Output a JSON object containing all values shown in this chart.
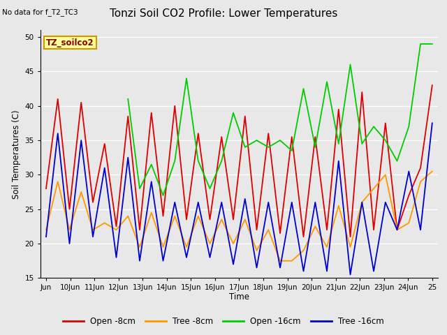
{
  "title": "Tonzi Soil CO2 Profile: Lower Temperatures",
  "no_data_text": "No data for f_T2_TC3",
  "ylabel": "Soil Temperatures (C)",
  "xlabel": "Time",
  "ylim": [
    15,
    51
  ],
  "yticks": [
    15,
    20,
    25,
    30,
    35,
    40,
    45,
    50
  ],
  "background_color": "#e8e8e8",
  "plot_bg_color": "#e8e8e8",
  "legend_label": "TZ_soilco2",
  "legend_box_color": "#ffff99",
  "legend_box_border": "#cc9900",
  "series_colors": {
    "open_8cm": "#dd0000",
    "tree_8cm": "#ff9900",
    "open_16cm": "#00cc00",
    "tree_16cm": "#0000cc"
  },
  "xtick_labels": [
    "Jun",
    "10Jun",
    "11Jun",
    "12Jun",
    "13Jun",
    "14Jun",
    "15Jun",
    "16Jun",
    "17Jun",
    "18Jun",
    "19Jun",
    "20Jun",
    "21Jun",
    "22Jun",
    "23Jun",
    "24Jun",
    "25"
  ],
  "open_8cm": [
    28,
    41,
    25,
    40.5,
    26,
    34.5,
    22.5,
    38.5,
    22,
    39,
    24,
    40,
    23.5,
    36,
    23.5,
    35.5,
    23.5,
    38.5,
    22,
    36,
    21.5,
    35.5,
    21,
    35.5,
    22,
    39.5,
    21,
    42,
    22,
    37.5,
    22,
    27,
    31,
    43
  ],
  "tree_8cm": [
    22,
    29,
    22,
    27.5,
    22,
    23,
    22,
    24,
    19.5,
    24.5,
    19.5,
    24,
    19.5,
    24,
    20,
    23.5,
    20,
    23.5,
    19,
    22,
    17.5,
    17.5,
    19,
    22.5,
    19.5,
    25.5,
    19.5,
    26,
    28,
    30,
    22,
    23,
    29,
    30.5
  ],
  "open_16cm": [
    null,
    null,
    null,
    null,
    null,
    null,
    null,
    41,
    28,
    31.5,
    27,
    32,
    44,
    32,
    28,
    32,
    39,
    34,
    35,
    34,
    35,
    33.5,
    42.5,
    34,
    43.5,
    34.5,
    46,
    34.5,
    37,
    35,
    32,
    37,
    49,
    49
  ],
  "tree_16cm": [
    21,
    36,
    20,
    35,
    21,
    31,
    18,
    32.5,
    17.5,
    29,
    17.5,
    26,
    18,
    26,
    18,
    26,
    17,
    26.5,
    16.5,
    26,
    16.5,
    26,
    16,
    26,
    16,
    32,
    15.5,
    26,
    16,
    26,
    22,
    30.5,
    22,
    37.5
  ]
}
